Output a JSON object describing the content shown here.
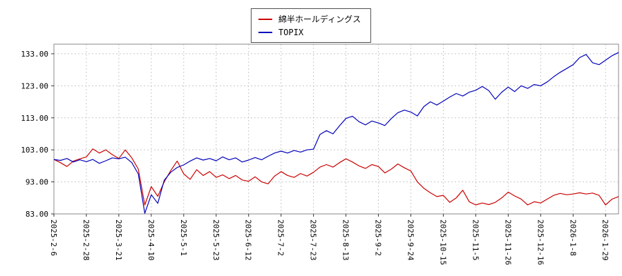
{
  "legend": {
    "entries": [
      {
        "label": "綿半ホールディングス",
        "color": "#cc0000"
      },
      {
        "label": "TOPIX",
        "color": "#0000bb"
      }
    ]
  },
  "chart_data": {
    "type": "line",
    "title": "",
    "xlabel": "",
    "ylabel": "",
    "grid": true,
    "legend_position": "top-center",
    "ylim": [
      83,
      136
    ],
    "yticks": [
      83,
      93,
      103,
      113,
      123,
      133
    ],
    "points_per_tick": 5,
    "x_tick_labels": [
      "2025-2-6",
      "2025-2-28",
      "2025-3-21",
      "2025-4-10",
      "2025-5-1",
      "2025-5-23",
      "2025-6-12",
      "2025-7-2",
      "2025-7-23",
      "2025-8-13",
      "2025-9-2",
      "2025-9-24",
      "2025-10-15",
      "2025-11-5",
      "2025-11-26",
      "2025-12-16",
      "2026-1-8",
      "2026-1-29"
    ],
    "series": [
      {
        "name": "綿半ホールディングス",
        "color": "#cc0000",
        "values": [
          100.0,
          99.0,
          97.8,
          99.5,
          100.2,
          100.8,
          103.3,
          102.0,
          103.0,
          101.5,
          100.3,
          103.0,
          100.5,
          97.0,
          85.8,
          91.5,
          88.5,
          93.0,
          96.5,
          99.5,
          95.5,
          93.8,
          96.8,
          95.0,
          96.2,
          94.4,
          95.2,
          94.0,
          95.0,
          93.6,
          93.2,
          94.6,
          93.0,
          92.4,
          94.8,
          96.2,
          95.0,
          94.4,
          95.6,
          94.8,
          96.0,
          97.6,
          98.4,
          97.6,
          99.0,
          100.2,
          99.2,
          98.0,
          97.2,
          98.4,
          97.8,
          95.8,
          97.0,
          98.6,
          97.4,
          96.4,
          93.0,
          91.0,
          89.6,
          88.4,
          88.8,
          86.6,
          88.0,
          90.4,
          86.8,
          85.8,
          86.4,
          85.9,
          86.6,
          88.0,
          89.8,
          88.6,
          87.6,
          85.8,
          86.8,
          86.4,
          87.6,
          88.8,
          89.4,
          89.0,
          89.2,
          89.6,
          89.2,
          89.5,
          88.8,
          85.8,
          87.6,
          88.4
        ]
      },
      {
        "name": "TOPIX",
        "color": "#0000bb",
        "values": [
          100.0,
          99.7,
          100.3,
          99.2,
          99.9,
          99.3,
          100.0,
          98.8,
          99.6,
          100.5,
          100.2,
          100.7,
          99.0,
          95.5,
          83.2,
          89.0,
          86.3,
          93.5,
          96.0,
          97.5,
          98.3,
          99.5,
          100.5,
          99.8,
          100.3,
          99.6,
          100.8,
          99.9,
          100.5,
          99.2,
          99.8,
          100.6,
          99.9,
          101.0,
          102.0,
          102.6,
          102.0,
          102.8,
          102.3,
          103.0,
          103.2,
          107.8,
          109.0,
          108.0,
          110.5,
          112.8,
          113.5,
          111.8,
          110.8,
          112.0,
          111.4,
          110.6,
          112.8,
          114.6,
          115.4,
          114.8,
          113.6,
          116.5,
          118.0,
          117.0,
          118.2,
          119.5,
          120.6,
          119.8,
          121.0,
          121.6,
          122.8,
          121.5,
          118.8,
          121.0,
          122.6,
          121.2,
          123.0,
          122.2,
          123.4,
          123.0,
          124.2,
          125.8,
          127.2,
          128.4,
          129.6,
          131.8,
          132.8,
          130.2,
          129.6,
          131.0,
          132.4,
          133.4
        ]
      }
    ]
  }
}
